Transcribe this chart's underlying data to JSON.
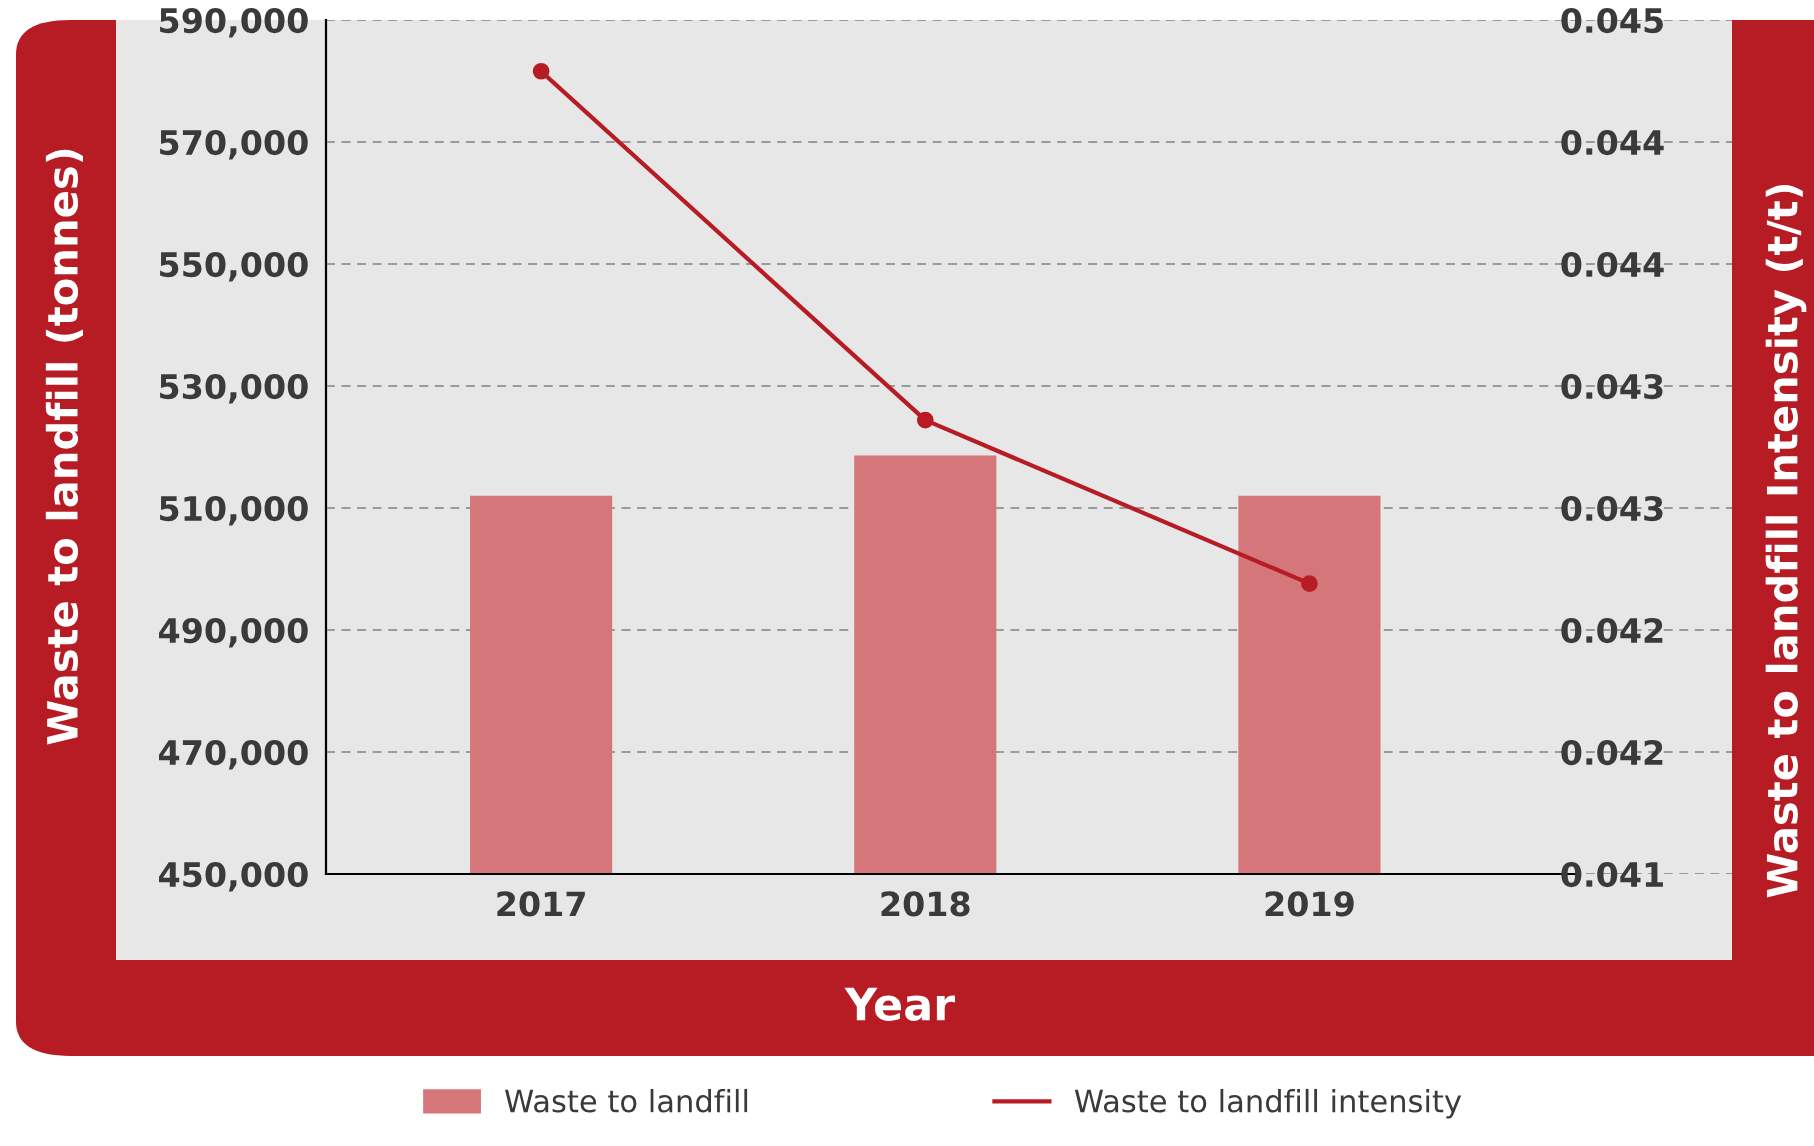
{
  "chart_data": {
    "type": "bar",
    "xlabel": "Year",
    "ylabel": "Waste to landfill (tonnes)",
    "y2label": "Waste to landfill Intensity (t/t)",
    "categories": [
      "2017",
      "2018",
      "2019"
    ],
    "series": [
      {
        "name": "Waste to landfill",
        "color": "#d4767a",
        "values": [
          512000,
          518600,
          512000
        ]
      },
      {
        "name": "Waste to landfill intensity",
        "type": "line",
        "axis": "y2",
        "color": "#b71c24",
        "marker": "circle",
        "values": [
          0.04429,
          0.04286,
          0.04219
        ]
      }
    ],
    "ylim": [
      450000,
      590000
    ],
    "yticks": [
      {
        "value": 450000,
        "label": "450,000"
      },
      {
        "value": 470000,
        "label": "470,000"
      },
      {
        "value": 490000,
        "label": "490,000"
      },
      {
        "value": 510000,
        "label": "510,000"
      },
      {
        "value": 530000,
        "label": "530,000"
      },
      {
        "value": 550000,
        "label": "550,000"
      },
      {
        "value": 570000,
        "label": "570,000"
      },
      {
        "value": 590000,
        "label": "590,000"
      }
    ],
    "y2lim": [
      0.041,
      0.0445
    ],
    "y2ticks": [
      {
        "value": 0.041,
        "label": "0.041"
      },
      {
        "value": 0.0415,
        "label": "0.042"
      },
      {
        "value": 0.042,
        "label": "0.042"
      },
      {
        "value": 0.0425,
        "label": "0.043"
      },
      {
        "value": 0.043,
        "label": "0.043"
      },
      {
        "value": 0.0435,
        "label": "0.044"
      },
      {
        "value": 0.044,
        "label": "0.044"
      },
      {
        "value": 0.0445,
        "label": "0.045"
      }
    ],
    "grid": "y",
    "legend": "bottom"
  }
}
